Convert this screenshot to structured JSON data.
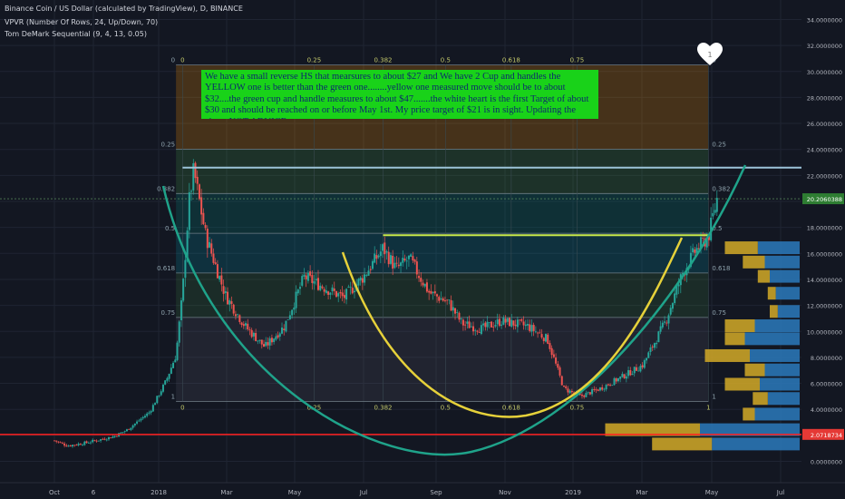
{
  "header": {
    "title": "Binance Coin / US Dollar (calculated by TradingView), D, BINANCE",
    "indicator_1": "VPVR (Number Of Rows, 24, Up/Down, 70)",
    "indicator_2": "Tom DeMark Sequential (9, 4, 13, 0.05)"
  },
  "annotation": {
    "text": "We have a small reverse HS that mearsures to about $27 and We have 2 Cup and handles the YELLOW one is better than the green one........yellow one measured move should be to about $32....the green cup and handle measures to about $47.......the white heart is the first Target of about $30 and should be reached on or before May 1st.  My price target of $21 is in sight.  Updating the chart.  NOT ADVICE"
  },
  "heart": {
    "label": "1"
  },
  "colors": {
    "background": "#131722",
    "up": "#26a69a",
    "down": "#ef5350",
    "yellow": "#e6d13a",
    "cup_green": "#1fa38a",
    "resistance": "#9cc4d9",
    "support": "#ff2020",
    "annotation_bg": "#19d219",
    "vp_up": "#2a74b4",
    "vp_down": "#c9a227"
  },
  "chart_data": {
    "type": "candlestick",
    "x_tick_labels": [
      "Oct",
      "6",
      "2018",
      "Mar",
      "May",
      "Jul",
      "Sep",
      "Nov",
      "2019",
      "Mar",
      "May",
      "Jul"
    ],
    "y_ticks": [
      0,
      2,
      4,
      6,
      8,
      10,
      12,
      14,
      16,
      18,
      20,
      22,
      24,
      26,
      28,
      30,
      32,
      34
    ],
    "y_tick_labels": [
      "0.0000000",
      "2.0000000",
      "4.0000000",
      "6.0000000",
      "8.0000000",
      "10.0000000",
      "12.0000000",
      "14.0000000",
      "16.0000000",
      "18.0000000",
      "20.0000000",
      "22.0000000",
      "24.0000000",
      "26.0000000",
      "28.0000000",
      "30.0000000",
      "32.0000000",
      "34.0000000"
    ],
    "ylim": [
      -0.5,
      35
    ],
    "last_price": {
      "value": 20.206,
      "label": "20.2060388"
    },
    "support_price": {
      "value": 2.072,
      "label": "2.0718734"
    },
    "resistance_level": 22.6,
    "neckline_level": 17.4,
    "fib_vertical": {
      "low": 4.6,
      "high": 30.5,
      "levels": [
        0,
        0.25,
        0.382,
        0.5,
        0.618,
        0.75,
        1
      ],
      "level_labels": [
        "1",
        "0.75",
        "0.618",
        "0.5",
        "0.382",
        "0.25",
        "0"
      ]
    },
    "fib_time_labels": [
      "0",
      "0.25",
      "0.382",
      "0.5",
      "0.618",
      "0.75",
      "1"
    ],
    "heart_target": 30,
    "price_path": [
      [
        0,
        1.6
      ],
      [
        0.2,
        1.2
      ],
      [
        0.45,
        1.4
      ],
      [
        0.9,
        1.9
      ],
      [
        1.1,
        2.4
      ],
      [
        1.45,
        3.8
      ],
      [
        1.7,
        6.2
      ],
      [
        1.85,
        8.2
      ],
      [
        1.95,
        13.0
      ],
      [
        2.05,
        20.0
      ],
      [
        2.12,
        22.4
      ],
      [
        2.3,
        17.4
      ],
      [
        2.6,
        12.8
      ],
      [
        2.9,
        10.4
      ],
      [
        3.2,
        8.8
      ],
      [
        3.5,
        10.4
      ],
      [
        3.8,
        14.2
      ],
      [
        4.1,
        13.4
      ],
      [
        4.4,
        12.6
      ],
      [
        4.7,
        14.2
      ],
      [
        5.0,
        16.4
      ],
      [
        5.2,
        14.8
      ],
      [
        5.4,
        15.6
      ],
      [
        5.7,
        13.0
      ],
      [
        6.0,
        12.2
      ],
      [
        6.2,
        10.6
      ],
      [
        6.5,
        10.2
      ],
      [
        6.8,
        10.8
      ],
      [
        7.2,
        10.4
      ],
      [
        7.5,
        9.4
      ],
      [
        7.75,
        5.6
      ],
      [
        8.0,
        5.0
      ],
      [
        8.3,
        5.6
      ],
      [
        8.6,
        6.4
      ],
      [
        8.95,
        7.4
      ],
      [
        9.3,
        10.8
      ],
      [
        9.55,
        14.4
      ],
      [
        9.75,
        16.2
      ],
      [
        9.95,
        17.3
      ],
      [
        10.08,
        20.2
      ]
    ],
    "volume_profile": [
      {
        "price": 16.4,
        "up": 0.42,
        "down": 0.33
      },
      {
        "price": 15.3,
        "up": 0.35,
        "down": 0.22
      },
      {
        "price": 14.2,
        "up": 0.3,
        "down": 0.12
      },
      {
        "price": 12.9,
        "up": 0.24,
        "down": 0.08
      },
      {
        "price": 11.5,
        "up": 0.22,
        "down": 0.08
      },
      {
        "price": 10.4,
        "up": 0.45,
        "down": 0.3
      },
      {
        "price": 9.4,
        "up": 0.55,
        "down": 0.2
      },
      {
        "price": 8.1,
        "up": 0.5,
        "down": 0.45
      },
      {
        "price": 7.0,
        "up": 0.35,
        "down": 0.2
      },
      {
        "price": 5.9,
        "up": 0.4,
        "down": 0.35
      },
      {
        "price": 4.8,
        "up": 0.32,
        "down": 0.15
      },
      {
        "price": 3.6,
        "up": 0.45,
        "down": 0.12
      },
      {
        "price": 2.4,
        "up": 1.0,
        "down": 0.95
      },
      {
        "price": 1.3,
        "up": 0.88,
        "down": 0.6
      }
    ]
  }
}
